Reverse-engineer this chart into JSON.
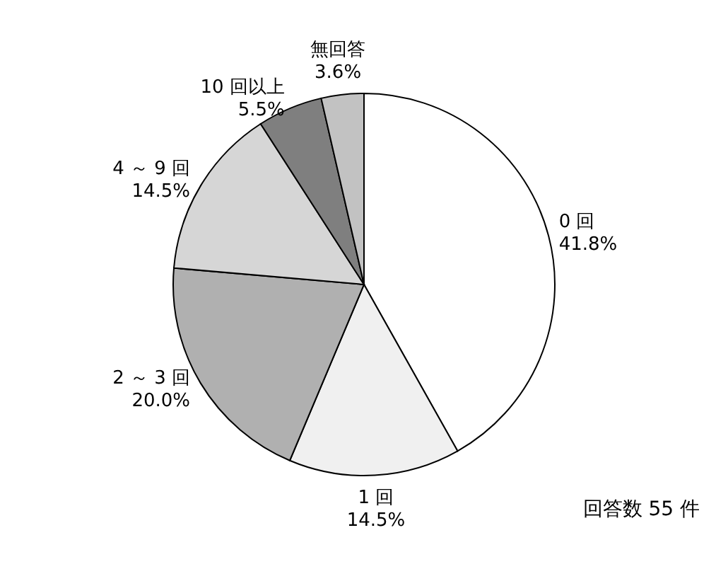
{
  "chart_data": {
    "type": "pie",
    "categories": [
      "0 回",
      "1 回",
      "2 ～ 3 回",
      "4 ～ 9 回",
      "10 回以上",
      "無回答"
    ],
    "values": [
      41.8,
      14.5,
      20.0,
      14.5,
      5.5,
      3.6
    ],
    "value_labels": [
      "41.8%",
      "14.5%",
      "20.0%",
      "14.5%",
      "5.5%",
      "3.6%"
    ],
    "colors": [
      "#ffffff",
      "#f0f0f0",
      "#b0b0b0",
      "#d6d6d6",
      "#7f7f7f",
      "#c2c2c2"
    ],
    "annotations": [
      "回答数 55 件"
    ]
  }
}
